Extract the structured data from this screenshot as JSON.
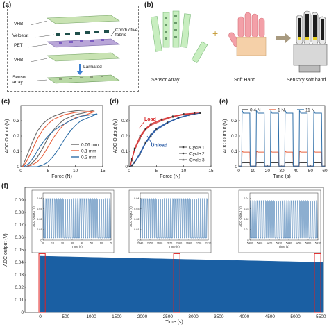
{
  "panels": {
    "a": {
      "label": "(a)",
      "layers": [
        "VHB",
        "Velostat",
        "PET",
        "VHB",
        "Sensor array"
      ],
      "conductive_label": "Conductive fabric",
      "laminated_label": "Lamiated"
    },
    "b": {
      "label": "(b)",
      "captions": [
        "Sensor Array",
        "Soft Hand",
        "Sensory soft hand"
      ],
      "plus": "+"
    }
  },
  "chart_data": [
    {
      "id": "c",
      "type": "line",
      "panel_label": "(c)",
      "xlabel": "Force (N)",
      "ylabel": "ADC Output (V)",
      "xlim": [
        0,
        15
      ],
      "ylim": [
        0,
        0.4
      ],
      "xticks": [
        0,
        5,
        10,
        15
      ],
      "yticks": [
        0,
        0.1,
        0.2,
        0.3
      ],
      "legend_position": "bottom-right",
      "series": [
        {
          "name": "0.06 mm",
          "color": "#666666",
          "load": [
            [
              0.3,
              0
            ],
            [
              1,
              0.06
            ],
            [
              2,
              0.15
            ],
            [
              3,
              0.23
            ],
            [
              4,
              0.28
            ],
            [
              5,
              0.31
            ],
            [
              6,
              0.33
            ],
            [
              8,
              0.355
            ],
            [
              10,
              0.365
            ],
            [
              12,
              0.37
            ],
            [
              13.5,
              0.37
            ]
          ],
          "unload": [
            [
              13.5,
              0.37
            ],
            [
              12,
              0.355
            ],
            [
              10,
              0.34
            ],
            [
              8,
              0.31
            ],
            [
              7,
              0.28
            ],
            [
              6,
              0.24
            ],
            [
              5,
              0.19
            ],
            [
              4,
              0.12
            ],
            [
              3,
              0.06
            ],
            [
              2,
              0.02
            ],
            [
              1,
              0
            ],
            [
              0.3,
              0
            ]
          ]
        },
        {
          "name": "0.1 mm",
          "color": "#e8603c",
          "load": [
            [
              0.3,
              0
            ],
            [
              1,
              0.03
            ],
            [
              2,
              0.1
            ],
            [
              3,
              0.18
            ],
            [
              4,
              0.24
            ],
            [
              5,
              0.28
            ],
            [
              6,
              0.31
            ],
            [
              8,
              0.34
            ],
            [
              10,
              0.355
            ],
            [
              12,
              0.36
            ],
            [
              13.5,
              0.36
            ]
          ],
          "unload": [
            [
              13.5,
              0.36
            ],
            [
              12,
              0.34
            ],
            [
              10,
              0.32
            ],
            [
              8,
              0.28
            ],
            [
              7,
              0.24
            ],
            [
              6,
              0.19
            ],
            [
              5,
              0.13
            ],
            [
              4,
              0.07
            ],
            [
              3,
              0.03
            ],
            [
              2,
              0.01
            ],
            [
              1,
              0
            ],
            [
              0.3,
              0
            ]
          ]
        },
        {
          "name": "0.2 mm",
          "color": "#2f6fa8",
          "load": [
            [
              0.5,
              0
            ],
            [
              1.5,
              0.02
            ],
            [
              2.5,
              0.07
            ],
            [
              3.5,
              0.13
            ],
            [
              4.5,
              0.18
            ],
            [
              5.5,
              0.22
            ],
            [
              7,
              0.26
            ],
            [
              9,
              0.3
            ],
            [
              11,
              0.33
            ],
            [
              13,
              0.34
            ],
            [
              14,
              0.345
            ]
          ],
          "unload": [
            [
              14,
              0.345
            ],
            [
              13,
              0.33
            ],
            [
              11,
              0.3
            ],
            [
              10,
              0.27
            ],
            [
              9,
              0.23
            ],
            [
              8,
              0.18
            ],
            [
              7,
              0.12
            ],
            [
              6,
              0.07
            ],
            [
              5,
              0.03
            ],
            [
              4,
              0.01
            ],
            [
              3,
              0
            ],
            [
              0.5,
              0
            ]
          ]
        }
      ]
    },
    {
      "id": "d",
      "type": "line",
      "panel_label": "(d)",
      "xlabel": "Force (N)",
      "ylabel": "ADC Output (V)",
      "xlim": [
        0,
        15
      ],
      "ylim": [
        0,
        0.4
      ],
      "xticks": [
        0,
        5,
        10,
        15
      ],
      "yticks": [
        0,
        0.1,
        0.2,
        0.3
      ],
      "annotations": [
        {
          "text": "Load",
          "color": "#d62020",
          "x": 2.8,
          "y": 0.3
        },
        {
          "text": "Unload",
          "color": "#2f5fa8",
          "x": 4,
          "y": 0.13
        }
      ],
      "legend_position": "bottom-right",
      "series": [
        {
          "name": "Cycle 1",
          "marker": "square",
          "load": [
            [
              0.2,
              0
            ],
            [
              0.5,
              0.05
            ],
            [
              1,
              0.12
            ],
            [
              2,
              0.2
            ],
            [
              3,
              0.25
            ],
            [
              4,
              0.28
            ],
            [
              6,
              0.31
            ],
            [
              8,
              0.33
            ],
            [
              10,
              0.345
            ],
            [
              12,
              0.35
            ],
            [
              13,
              0.352
            ]
          ],
          "unload": [
            [
              13,
              0.352
            ],
            [
              11,
              0.34
            ],
            [
              9,
              0.32
            ],
            [
              7,
              0.29
            ],
            [
              5,
              0.25
            ],
            [
              4,
              0.21
            ],
            [
              3,
              0.16
            ],
            [
              2,
              0.09
            ],
            [
              1,
              0.03
            ],
            [
              0.5,
              0.01
            ],
            [
              0.2,
              0
            ]
          ]
        },
        {
          "name": "Cycle 2",
          "marker": "circle",
          "load": [
            [
              0.2,
              0
            ],
            [
              0.5,
              0.045
            ],
            [
              1,
              0.11
            ],
            [
              2,
              0.19
            ],
            [
              3,
              0.245
            ],
            [
              4,
              0.275
            ],
            [
              6,
              0.305
            ],
            [
              8,
              0.328
            ],
            [
              10,
              0.342
            ],
            [
              12,
              0.349
            ],
            [
              13,
              0.351
            ]
          ],
          "unload": [
            [
              13,
              0.351
            ],
            [
              11,
              0.338
            ],
            [
              9,
              0.318
            ],
            [
              7,
              0.287
            ],
            [
              5,
              0.245
            ],
            [
              4,
              0.205
            ],
            [
              3,
              0.155
            ],
            [
              2,
              0.085
            ],
            [
              1,
              0.028
            ],
            [
              0.5,
              0.009
            ],
            [
              0.2,
              0
            ]
          ]
        },
        {
          "name": "Cycle 3",
          "marker": "triangle",
          "load": [
            [
              0.2,
              0
            ],
            [
              0.5,
              0.04
            ],
            [
              1,
              0.105
            ],
            [
              2,
              0.185
            ],
            [
              3,
              0.24
            ],
            [
              4,
              0.27
            ],
            [
              6,
              0.3
            ],
            [
              8,
              0.325
            ],
            [
              10,
              0.34
            ],
            [
              12,
              0.348
            ],
            [
              13,
              0.35
            ]
          ],
          "unload": [
            [
              13,
              0.35
            ],
            [
              11,
              0.336
            ],
            [
              9,
              0.316
            ],
            [
              7,
              0.284
            ],
            [
              5,
              0.24
            ],
            [
              4,
              0.2
            ],
            [
              3,
              0.15
            ],
            [
              2,
              0.08
            ],
            [
              1,
              0.025
            ],
            [
              0.5,
              0.008
            ],
            [
              0.2,
              0
            ]
          ]
        }
      ]
    },
    {
      "id": "e",
      "type": "line",
      "panel_label": "(e)",
      "xlabel": "Time (s)",
      "ylabel": "ADC Output (V)",
      "xlim": [
        0,
        60
      ],
      "ylim": [
        0,
        0.4
      ],
      "xticks": [
        0,
        10,
        20,
        30,
        40,
        50,
        60
      ],
      "xtick_labels": [
        "0",
        "10",
        "20",
        "30",
        "40",
        "50",
        "60"
      ],
      "yticks": [
        0,
        0.1,
        0.2,
        0.3
      ],
      "legend_position": "top",
      "pulses": [
        [
          2,
          8
        ],
        [
          12,
          18
        ],
        [
          22,
          28
        ],
        [
          32,
          38
        ],
        [
          42,
          48
        ],
        [
          52,
          58
        ]
      ],
      "series": [
        {
          "name": "0.4 N",
          "color": "#444444",
          "level": 0.025
        },
        {
          "name": "1 N",
          "color": "#e8603c",
          "level": 0.095
        },
        {
          "name": "11 N",
          "color": "#2f6fa8",
          "level": 0.35
        }
      ]
    },
    {
      "id": "f",
      "type": "area",
      "panel_label": "(f)",
      "xlabel": "Time (s)",
      "ylabel": "ADC output (V)",
      "xlim": [
        -300,
        5550
      ],
      "ylim": [
        0,
        0.1
      ],
      "xticks": [
        0,
        500,
        1000,
        1500,
        2000,
        2500,
        3000,
        3500,
        4000,
        4500,
        5000,
        5500
      ],
      "yticks": [
        0,
        0.01,
        0.02,
        0.03,
        0.04,
        0.05,
        0.06,
        0.07,
        0.08,
        0.09
      ],
      "envelope_start": 0.045,
      "envelope_end": 0.04,
      "color": "#1a5fa3",
      "highlight_windows": [
        [
          0,
          70
        ],
        [
          2640,
          2710
        ],
        [
          5400,
          5470
        ]
      ],
      "insets": [
        {
          "xlabel": "Time (s)",
          "ylabel": "ADC Output (V)",
          "xlim": [
            0,
            70
          ],
          "xticks": [
            0,
            10,
            20,
            30,
            40,
            50,
            60,
            70
          ],
          "ylim": [
            0,
            0.045
          ],
          "yticks": [
            0,
            0.01,
            0.02,
            0.03,
            0.04
          ],
          "peak": 0.04,
          "cycles": 32
        },
        {
          "xlabel": "Time (s)",
          "ylabel": "ADC Output (V)",
          "xlim": [
            2640,
            2710
          ],
          "xticks": [
            2640,
            2650,
            2660,
            2670,
            2680,
            2690,
            2700,
            2710
          ],
          "ylim": [
            0,
            0.045
          ],
          "yticks": [
            0,
            0.01,
            0.02,
            0.03,
            0.04
          ],
          "peak": 0.04,
          "cycles": 32
        },
        {
          "xlabel": "Time (s)",
          "ylabel": "ADC Output (V)",
          "xlim": [
            5400,
            5470
          ],
          "xticks": [
            5400,
            5410,
            5420,
            5430,
            5440,
            5450,
            5460,
            5470
          ],
          "ylim": [
            0,
            0.045
          ],
          "yticks": [
            0,
            0.01,
            0.02,
            0.03,
            0.04
          ],
          "peak": 0.038,
          "cycles": 32
        }
      ]
    }
  ]
}
